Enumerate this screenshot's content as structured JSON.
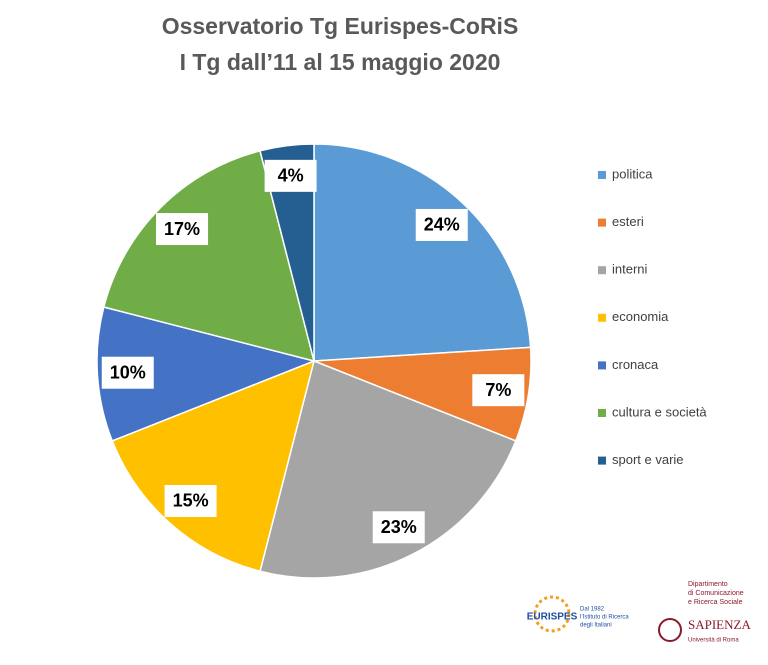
{
  "chart_data": {
    "type": "pie",
    "title": "Osservatorio Tg Eurispes-CoRiS",
    "subtitle": "I Tg dall’11 al 15 maggio 2020",
    "categories": [
      "politica",
      "esteri",
      "interni",
      "economia",
      "cronaca",
      "cultura e società",
      "sport e varie"
    ],
    "values": [
      24,
      7,
      23,
      15,
      10,
      17,
      4
    ],
    "value_labels": [
      "24%",
      "7%",
      "23%",
      "15%",
      "10%",
      "17%",
      "4%"
    ],
    "colors": [
      "#5b9bd5",
      "#ed7d31",
      "#a5a5a5",
      "#ffc000",
      "#4472c4",
      "#70ad47",
      "#255e91"
    ],
    "legend": "right"
  },
  "logos": {
    "eurispes": "EURISPES",
    "eurispes_tagline": [
      "Dal 1982",
      "l’Istituto di Ricerca",
      "degli Italiani"
    ],
    "department": [
      "Dipartimento",
      "di Comunicazione",
      "e Ricerca Sociale"
    ],
    "sapienza": "SAPIENZA",
    "sapienza_sub": "Università di Roma"
  }
}
